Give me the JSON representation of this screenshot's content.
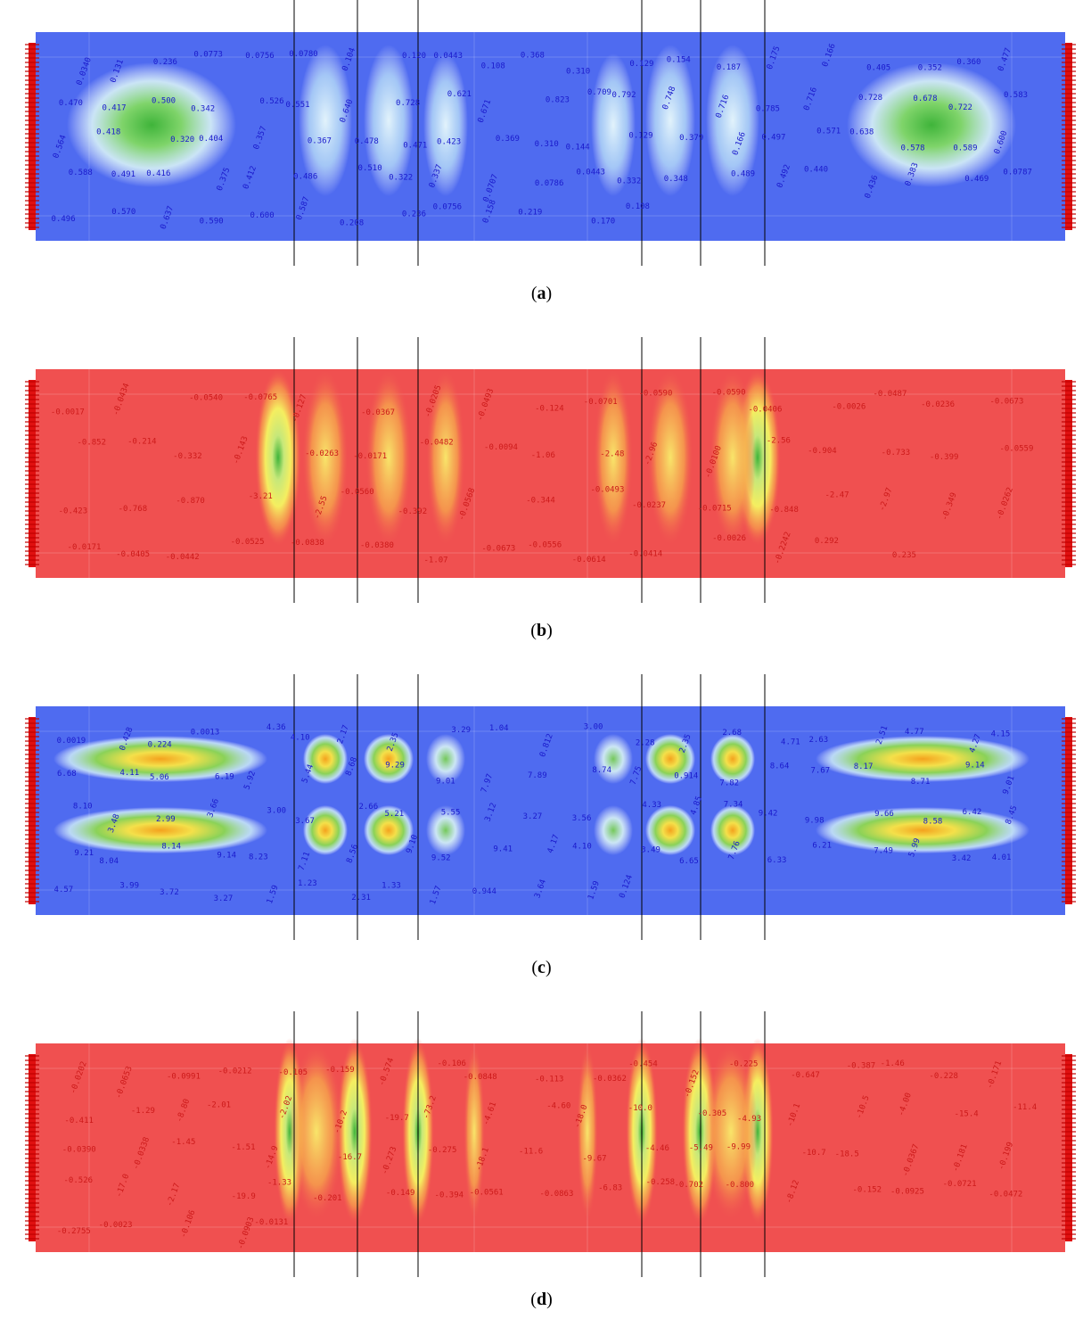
{
  "figure": {
    "panels": [
      {
        "id": "a",
        "caption_label": "a",
        "palette": "blue-green",
        "label_color": "#1a1acc",
        "background_color": "#4f6bf0",
        "labels": [
          "0.0340",
          "0.131",
          "0.236",
          "0.0773",
          "0.0756",
          "0.0780",
          "0.104",
          "0.120",
          "0.0443",
          "0.108",
          "0.368",
          "0.310",
          "0.129",
          "0.154",
          "0.187",
          "0.175",
          "0.166",
          "0.405",
          "0.352",
          "0.360",
          "0.477",
          "0.470",
          "0.417",
          "0.500",
          "0.342",
          "0.526",
          "0.551",
          "0.640",
          "0.728",
          "0.621",
          "0.671",
          "0.823",
          "0.709",
          "0.792",
          "0.748",
          "0.716",
          "0.785",
          "0.716",
          "0.728",
          "0.678",
          "0.722",
          "0.583",
          "0.564",
          "0.418",
          "0.320",
          "0.404",
          "0.357",
          "0.367",
          "0.478",
          "0.471",
          "0.423",
          "0.369",
          "0.310",
          "0.144",
          "0.129",
          "0.379",
          "0.166",
          "0.497",
          "0.571",
          "0.638",
          "0.578",
          "0.589",
          "0.600",
          "0.588",
          "0.491",
          "0.416",
          "0.375",
          "0.412",
          "0.486",
          "0.510",
          "0.322",
          "0.337",
          "0.0707",
          "0.0786",
          "0.0443",
          "0.332",
          "0.348",
          "0.489",
          "0.492",
          "0.440",
          "0.436",
          "0.383",
          "0.469",
          "0.0787",
          "0.496",
          "0.570",
          "0.637",
          "0.590",
          "0.600",
          "0.587",
          "0.208",
          "0.236",
          "0.0756",
          "0.158",
          "0.219",
          "0.170",
          "0.108"
        ]
      },
      {
        "id": "b",
        "caption_label": "b",
        "palette": "red-yellow",
        "label_color": "#cc1a1a",
        "background_color": "#f05050",
        "labels": [
          "-0.0017",
          "-0.0434",
          "-0.0540",
          "-0.0765",
          "-0.127",
          "-0.0367",
          "-0.0205",
          "-0.0493",
          "-0.124",
          "-0.0701",
          "-0.0590",
          "-0.0590",
          "-0.0406",
          "-0.0026",
          "-0.0487",
          "-0.0236",
          "-0.0673",
          "-0.852",
          "-0.214",
          "-0.332",
          "-0.143",
          "-0.0263",
          "-0.0171",
          "-0.0482",
          "-0.0094",
          "-1.06",
          "-2.48",
          "-2.96",
          "-0.0100",
          "-2.56",
          "-0.904",
          "-0.733",
          "-0.399",
          "-0.0559",
          "-0.423",
          "-0.768",
          "-0.870",
          "-3.21",
          "-2.55",
          "-0.0560",
          "-0.392",
          "-0.0568",
          "-0.344",
          "-0.0493",
          "-0.0237",
          "-0.0715",
          "-0.848",
          "-2.47",
          "-2.97",
          "-0.349",
          "-0.0262",
          "-0.0171",
          "-0.0405",
          "-0.0442",
          "-0.0525",
          "-0.0838",
          "-0.0380",
          "-1.07",
          "-0.0673",
          "-0.0556",
          "-0.0614",
          "-0.0414",
          "-0.0026",
          "-0.2242",
          "0.292",
          "0.235"
        ]
      },
      {
        "id": "c",
        "caption_label": "c",
        "palette": "blue-green-yellow",
        "label_color": "#1a1acc",
        "background_color": "#4f6bf0",
        "labels": [
          "0.0019",
          "0.428",
          "0.224",
          "0.0013",
          "4.36",
          "4.10",
          "2.17",
          "2.35",
          "3.29",
          "1.04",
          "0.812",
          "3.00",
          "2.28",
          "2.35",
          "2.68",
          "4.71",
          "2.63",
          "2.51",
          "4.77",
          "4.27",
          "4.15",
          "6.68",
          "4.11",
          "5.06",
          "6.19",
          "5.92",
          "5.44",
          "8.68",
          "9.29",
          "9.01",
          "7.97",
          "7.89",
          "8.74",
          "7.75",
          "0.914",
          "7.82",
          "8.64",
          "7.67",
          "8.17",
          "8.71",
          "9.14",
          "9.01",
          "8.10",
          "3.48",
          "2.99",
          "3.66",
          "3.00",
          "3.67",
          "2.66",
          "5.21",
          "5.55",
          "3.12",
          "3.27",
          "3.56",
          "4.33",
          "4.85",
          "7.34",
          "9.42",
          "9.98",
          "9.66",
          "8.58",
          "6.42",
          "8.45",
          "9.21",
          "8.04",
          "8.14",
          "9.14",
          "8.23",
          "7.11",
          "8.56",
          "9.10",
          "9.52",
          "9.41",
          "4.17",
          "4.10",
          "3.49",
          "6.65",
          "7.76",
          "6.33",
          "6.21",
          "7.49",
          "5.99",
          "3.42",
          "4.01",
          "4.57",
          "3.99",
          "3.72",
          "3.27",
          "1.59",
          "1.23",
          "2.31",
          "1.33",
          "1.57",
          "0.944",
          "3.64",
          "1.59",
          "0.124"
        ]
      },
      {
        "id": "d",
        "caption_label": "d",
        "palette": "red-yellow",
        "label_color": "#cc1a1a",
        "background_color": "#f05050",
        "labels": [
          "-0.0202",
          "-0.0653",
          "-0.0991",
          "-0.0212",
          "-0.105",
          "-0.159",
          "-0.574",
          "-0.106",
          "-0.0848",
          "-0.113",
          "-0.0362",
          "-0.454",
          "-0.152",
          "-0.225",
          "-0.647",
          "-0.387",
          "-1.46",
          "-0.228",
          "-0.171",
          "-0.411",
          "-1.29",
          "-8.80",
          "-2.01",
          "-2.02",
          "-10.2",
          "-19.7",
          "-73.2",
          "-4.61",
          "-4.60",
          "-18.0",
          "-10.0",
          "-0.305",
          "-4.93",
          "-10.1",
          "-10.5",
          "-4.00",
          "-15.4",
          "-11.4",
          "-0.0390",
          "-0.0338",
          "-1.45",
          "-1.51",
          "-14.9",
          "-16.7",
          "-0.273",
          "-0.275",
          "-18.1",
          "-11.6",
          "-9.67",
          "-4.46",
          "-5.49",
          "-9.99",
          "-10.7",
          "-18.5",
          "-0.0367",
          "-0.181",
          "-0.199",
          "-0.526",
          "-17.0",
          "-2.17",
          "-19.9",
          "-1.33",
          "-0.201",
          "-0.149",
          "-0.394",
          "-0.0561",
          "-0.0863",
          "-6.83",
          "-0.258",
          "-0.702",
          "-0.800",
          "-8.12",
          "-0.152",
          "-0.0925",
          "-0.0721",
          "-0.0472",
          "-0.2755",
          "-0.0023",
          "-0.106",
          "-0.0903",
          "-0.0131"
        ]
      }
    ]
  }
}
